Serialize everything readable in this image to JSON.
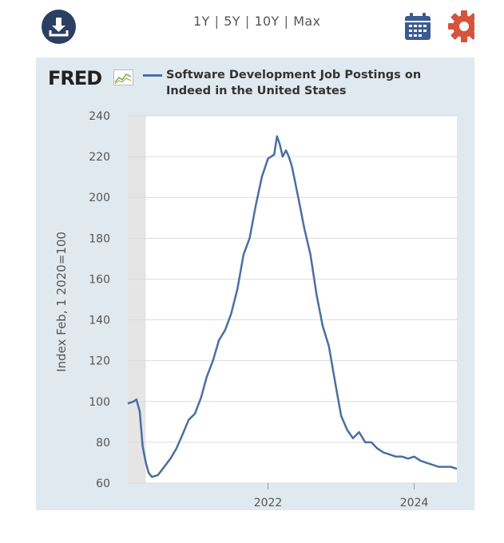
{
  "toolbar": {
    "download_icon": "download-icon",
    "ranges": [
      "1Y",
      "5Y",
      "10Y",
      "Max"
    ],
    "separator": "|",
    "calendar_icon": "calendar-icon",
    "settings_icon": "gear-icon"
  },
  "colors": {
    "panel_background": "#e1e9f0",
    "series_line": "#4a6fa0",
    "download_button": "#2b3f63",
    "calendar": "#3b5b93",
    "gear": "#d4543c"
  },
  "brand": {
    "logo_text": "FRED"
  },
  "chart_data": {
    "type": "line",
    "title": "Software Development Job Postings on Indeed in the United States",
    "ylabel": "Index Feb, 1 2020=100",
    "xlabel": "",
    "ylim": [
      60,
      240
    ],
    "y_ticks": [
      60,
      80,
      100,
      120,
      140,
      160,
      180,
      200,
      220,
      240
    ],
    "xlim": [
      "2020-02-01",
      "2024-08-01"
    ],
    "x_ticks": [
      {
        "date": "2022-01-01",
        "label": "2022"
      },
      {
        "date": "2024-01-01",
        "label": "2024"
      }
    ],
    "grid": "horizontal",
    "legend": "top",
    "series": [
      {
        "name": "Software Development Job Postings on Indeed in the United States",
        "x": [
          "2020-02-01",
          "2020-03-01",
          "2020-03-15",
          "2020-04-01",
          "2020-04-15",
          "2020-05-01",
          "2020-05-15",
          "2020-06-01",
          "2020-07-01",
          "2020-08-01",
          "2020-09-01",
          "2020-10-01",
          "2020-11-01",
          "2020-12-01",
          "2021-01-01",
          "2021-02-01",
          "2021-03-01",
          "2021-04-01",
          "2021-05-01",
          "2021-06-01",
          "2021-07-01",
          "2021-08-01",
          "2021-09-01",
          "2021-10-01",
          "2021-11-01",
          "2021-12-01",
          "2022-01-01",
          "2022-02-01",
          "2022-02-15",
          "2022-03-01",
          "2022-03-15",
          "2022-04-01",
          "2022-04-15",
          "2022-05-01",
          "2022-06-01",
          "2022-07-01",
          "2022-08-01",
          "2022-09-01",
          "2022-10-01",
          "2022-11-01",
          "2022-12-01",
          "2023-01-01",
          "2023-02-01",
          "2023-03-01",
          "2023-04-01",
          "2023-05-01",
          "2023-06-01",
          "2023-07-01",
          "2023-08-01",
          "2023-09-01",
          "2023-10-01",
          "2023-11-01",
          "2023-12-01",
          "2024-01-01",
          "2024-02-01",
          "2024-03-01",
          "2024-04-01",
          "2024-05-01",
          "2024-06-01",
          "2024-07-01",
          "2024-08-01"
        ],
        "values": [
          99,
          100,
          101,
          95,
          78,
          70,
          65,
          63,
          64,
          68,
          72,
          77,
          84,
          91,
          94,
          102,
          112,
          120,
          130,
          135,
          143,
          155,
          172,
          180,
          196,
          210,
          219,
          221,
          230,
          226,
          220,
          223,
          220,
          215,
          200,
          185,
          172,
          152,
          137,
          127,
          110,
          93,
          86,
          82,
          85,
          80,
          80,
          77,
          75,
          74,
          73,
          73,
          72,
          73,
          71,
          70,
          69,
          68,
          68,
          68,
          67
        ]
      }
    ]
  }
}
